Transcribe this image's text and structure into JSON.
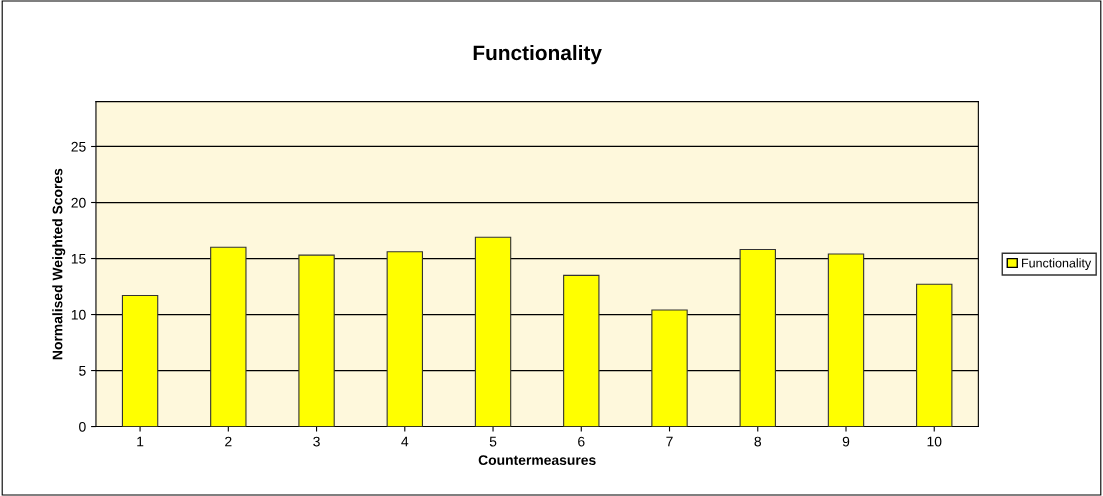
{
  "chart_data": {
    "type": "bar",
    "title": "Functionality",
    "xlabel": "Countermeasures",
    "ylabel": "Normalised Weighted Scores",
    "categories": [
      "1",
      "2",
      "3",
      "4",
      "5",
      "6",
      "7",
      "8",
      "9",
      "10"
    ],
    "series": [
      {
        "name": "Functionality",
        "color": "#ffff00",
        "values": [
          11.7,
          16.0,
          15.3,
          15.6,
          16.9,
          13.5,
          10.4,
          15.8,
          15.4,
          12.7
        ]
      }
    ],
    "ylim": [
      0,
      29
    ],
    "yticks": [
      0,
      5,
      10,
      15,
      20,
      25
    ],
    "grid": "y",
    "legend": "right"
  }
}
